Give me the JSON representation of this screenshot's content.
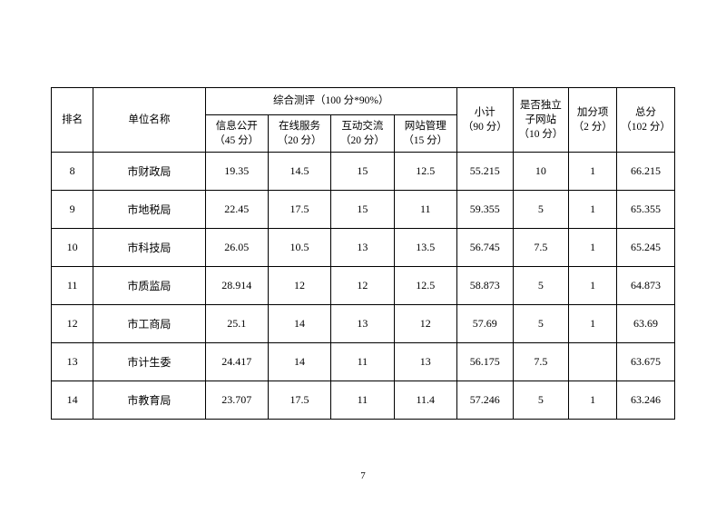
{
  "table": {
    "headers": {
      "rank": "排名",
      "name": "单位名称",
      "eval_group": "综合测评（100 分*90%）",
      "info": "信息公开\n（45 分）",
      "online": "在线服务\n（20 分）",
      "interact": "互动交流\n（20 分）",
      "manage": "网站管理\n（15 分）",
      "subtotal": "小计\n（90 分）",
      "indep": "是否独立\n子网站\n（10 分）",
      "bonus": "加分项\n（2 分）",
      "total": "总分\n（102 分）"
    },
    "rows": [
      {
        "rank": "8",
        "name": "市财政局",
        "info": "19.35",
        "online": "14.5",
        "interact": "15",
        "manage": "12.5",
        "subtotal": "55.215",
        "indep": "10",
        "bonus": "1",
        "total": "66.215"
      },
      {
        "rank": "9",
        "name": "市地税局",
        "info": "22.45",
        "online": "17.5",
        "interact": "15",
        "manage": "11",
        "subtotal": "59.355",
        "indep": "5",
        "bonus": "1",
        "total": "65.355"
      },
      {
        "rank": "10",
        "name": "市科技局",
        "info": "26.05",
        "online": "10.5",
        "interact": "13",
        "manage": "13.5",
        "subtotal": "56.745",
        "indep": "7.5",
        "bonus": "1",
        "total": "65.245"
      },
      {
        "rank": "11",
        "name": "市质监局",
        "info": "28.914",
        "online": "12",
        "interact": "12",
        "manage": "12.5",
        "subtotal": "58.873",
        "indep": "5",
        "bonus": "1",
        "total": "64.873"
      },
      {
        "rank": "12",
        "name": "市工商局",
        "info": "25.1",
        "online": "14",
        "interact": "13",
        "manage": "12",
        "subtotal": "57.69",
        "indep": "5",
        "bonus": "1",
        "total": "63.69"
      },
      {
        "rank": "13",
        "name": "市计生委",
        "info": "24.417",
        "online": "14",
        "interact": "11",
        "manage": "13",
        "subtotal": "56.175",
        "indep": "7.5",
        "bonus": "",
        "total": "63.675"
      },
      {
        "rank": "14",
        "name": "市教育局",
        "info": "23.707",
        "online": "17.5",
        "interact": "11",
        "manage": "11.4",
        "subtotal": "57.246",
        "indep": "5",
        "bonus": "1",
        "total": "63.246"
      }
    ]
  },
  "page_number": "7"
}
